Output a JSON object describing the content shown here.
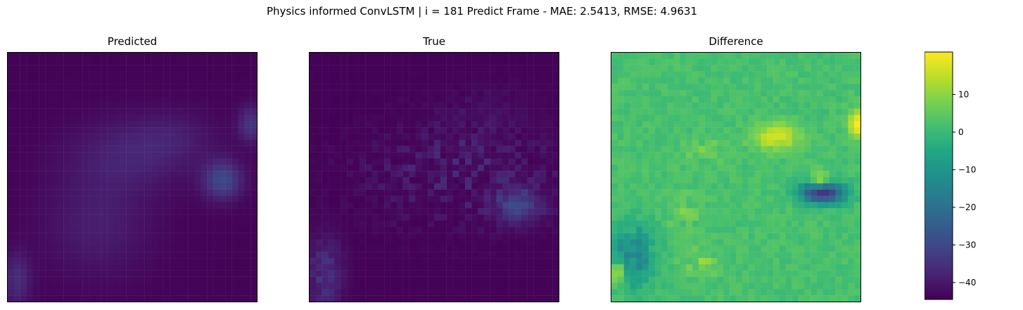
{
  "figure": {
    "suptitle": "Physics informed ConvLSTM | i = 181 Predict Frame - MAE: 2.5413, RMSE: 4.9631"
  },
  "chart_data": {
    "type": "heatmap",
    "colormap": "viridis",
    "grid_size": 40,
    "vmin": -44.5,
    "vmax": 21.3,
    "panels": [
      {
        "title": "Predicted"
      },
      {
        "title": "True"
      },
      {
        "title": "Difference"
      }
    ],
    "colorbar": {
      "ticks": [
        10,
        0,
        -10,
        -20,
        -30,
        -40
      ],
      "tick_labels": [
        "10",
        "0",
        "−10",
        "−20",
        "−30",
        "−40"
      ],
      "range": [
        -44.5,
        21.3
      ]
    }
  }
}
